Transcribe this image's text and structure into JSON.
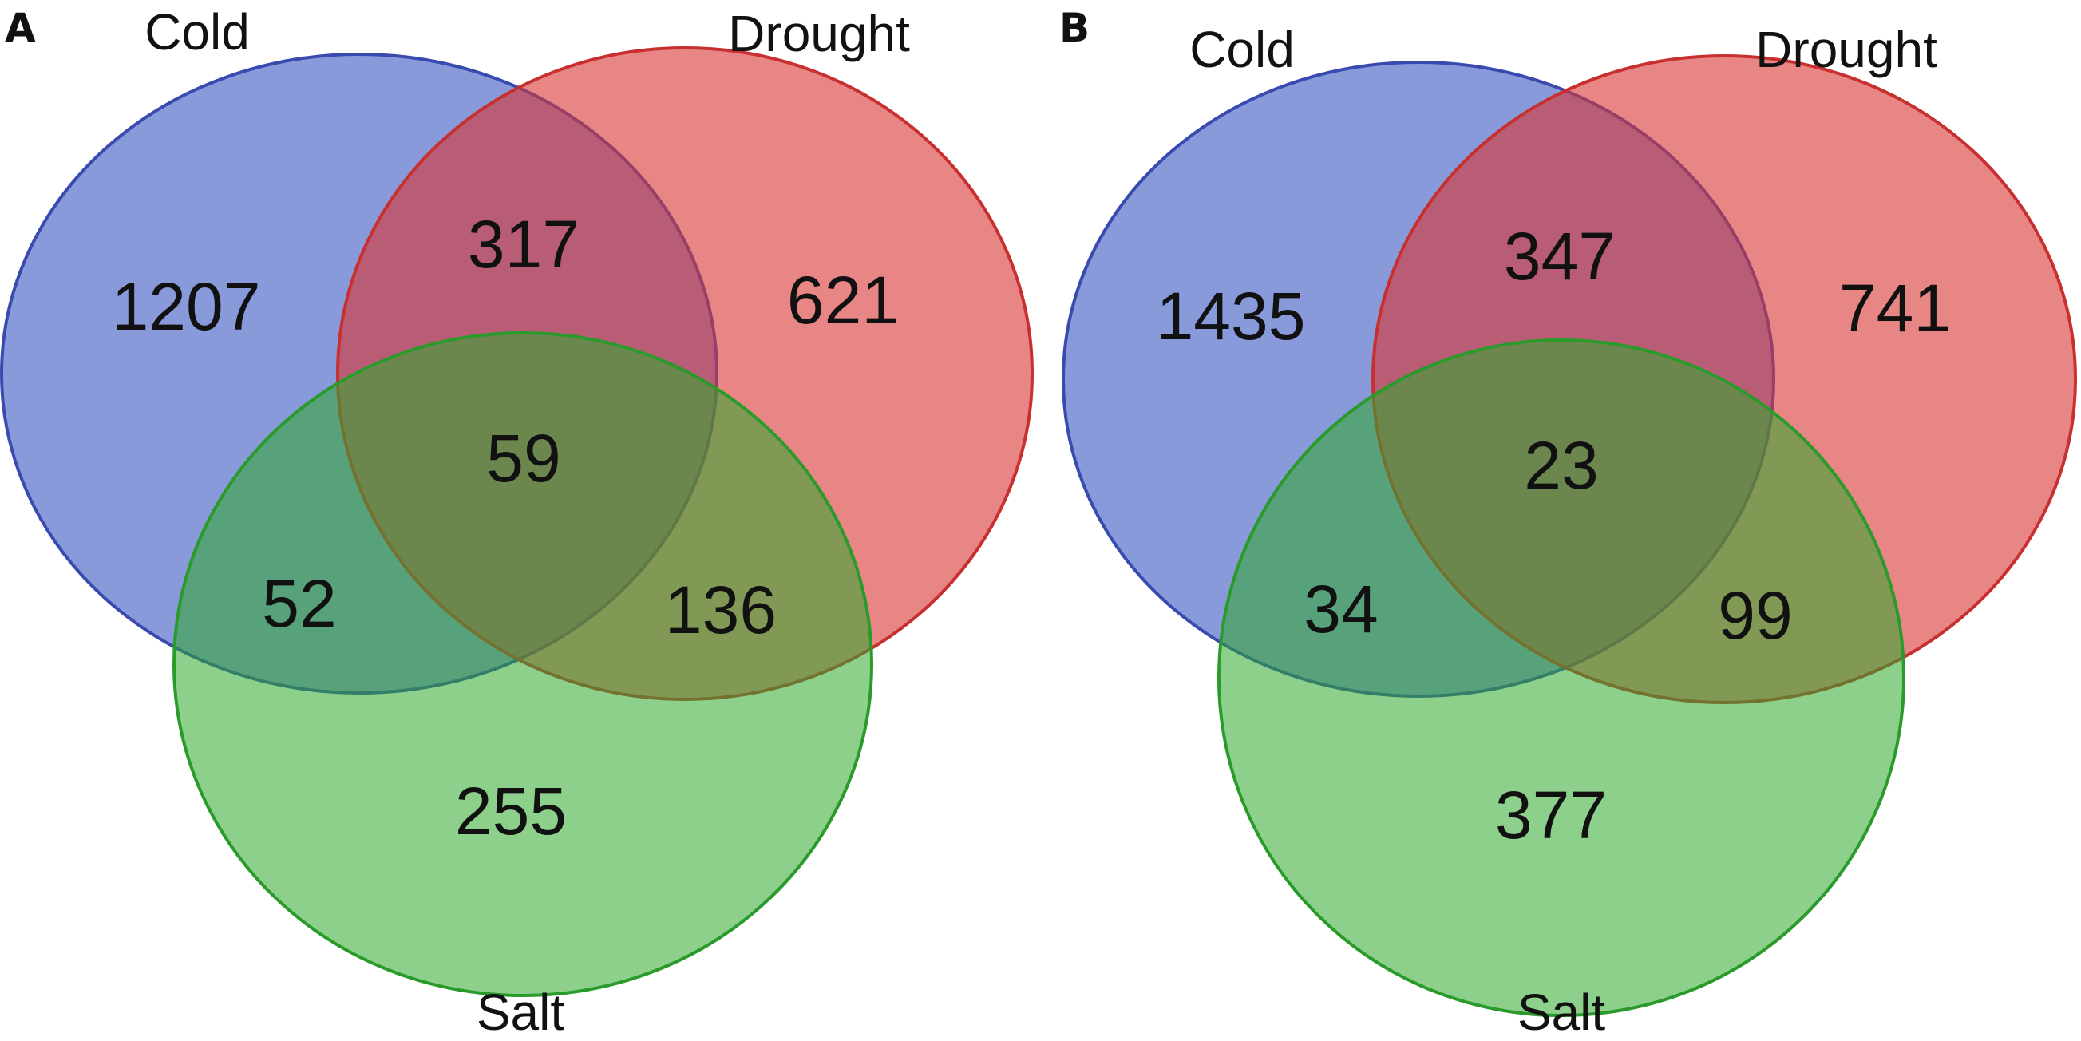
{
  "panels": [
    {
      "letter": "A",
      "sets": {
        "cold": "Cold",
        "drought": "Drought",
        "salt": "Salt"
      },
      "counts": {
        "cold_only": "1207",
        "drought_only": "621",
        "salt_only": "255",
        "cold_drought": "317",
        "cold_salt": "52",
        "drought_salt": "136",
        "all": "59"
      }
    },
    {
      "letter": "B",
      "sets": {
        "cold": "Cold",
        "drought": "Drought",
        "salt": "Salt"
      },
      "counts": {
        "cold_only": "1435",
        "drought_only": "741",
        "salt_only": "377",
        "cold_drought": "347",
        "cold_salt": "34",
        "drought_salt": "99",
        "all": "23"
      }
    }
  ],
  "colors": {
    "cold": "#3a56c2",
    "drought": "#d93535",
    "salt": "#2eaa2e"
  }
}
